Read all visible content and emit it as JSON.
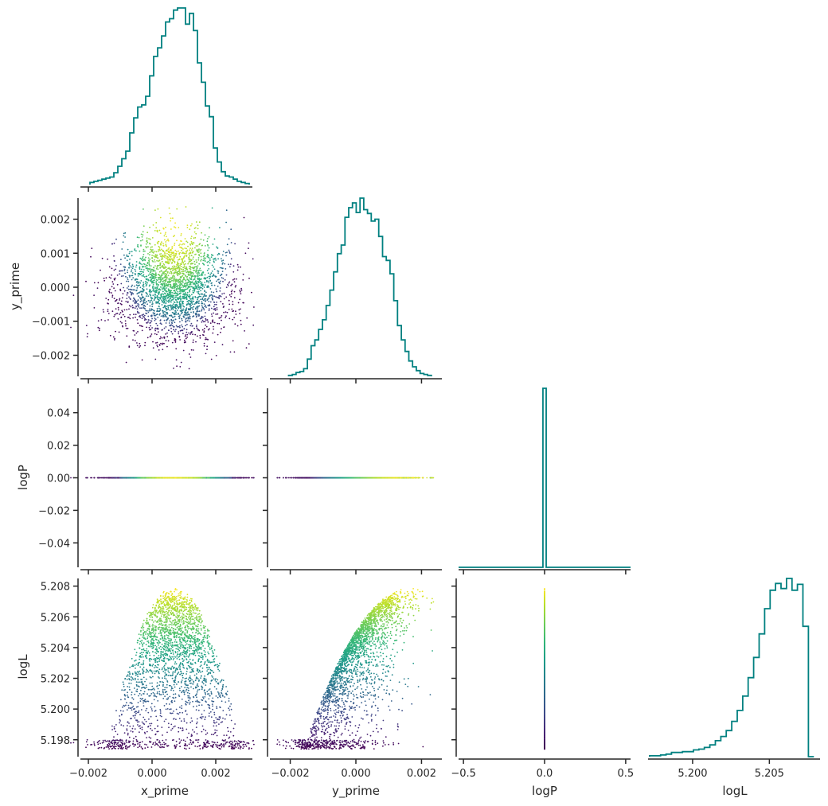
{
  "chart_data": {
    "type": "corner",
    "variables": [
      "x_prime",
      "y_prime",
      "logP",
      "logL"
    ],
    "axis_labels": {
      "x": [
        "x_prime",
        "y_prime",
        "logP",
        "logL"
      ],
      "y": [
        "",
        "y_prime",
        "logP",
        "logL"
      ]
    },
    "colors": {
      "histogram": "#008080",
      "axis": "#262626",
      "colormap": "viridis"
    },
    "ranges": {
      "x_prime": [
        -0.00225,
        0.00315
      ],
      "y_prime": [
        -0.00262,
        0.00262
      ],
      "logP": [
        -0.055,
        0.055
      ],
      "logL": [
        5.1969,
        5.2085
      ],
      "logP_hist_x": [
        -0.53,
        0.53
      ],
      "logL_hist_x": [
        5.1971,
        5.2083
      ]
    },
    "ticks": {
      "x_prime": {
        "values": [
          -0.002,
          0.0,
          0.002
        ],
        "labels": [
          "−0.002",
          "0.000",
          "0.002"
        ]
      },
      "y_prime_x": {
        "values": [
          -0.002,
          0.0,
          0.002
        ],
        "labels": [
          "−0.002",
          "0.000",
          "0.002"
        ]
      },
      "y_prime_y": {
        "values": [
          -0.002,
          -0.001,
          0.0,
          0.001,
          0.002
        ],
        "labels": [
          "−0.002",
          "−0.001",
          "0.000",
          "0.001",
          "0.002"
        ]
      },
      "logP_x": {
        "values": [
          -0.5,
          0.0,
          0.5
        ],
        "labels": [
          "−0.5",
          "0.0",
          "0.5"
        ]
      },
      "logP_y": {
        "values": [
          -0.04,
          -0.02,
          0.0,
          0.02,
          0.04
        ],
        "labels": [
          "−0.04",
          "−0.02",
          "0.00",
          "0.02",
          "0.04"
        ]
      },
      "logL_x": {
        "values": [
          5.2,
          5.205
        ],
        "labels": [
          "5.200",
          "5.205"
        ]
      },
      "logL_y": {
        "values": [
          5.198,
          5.2,
          5.202,
          5.204,
          5.206,
          5.208
        ],
        "labels": [
          "5.198",
          "5.200",
          "5.202",
          "5.204",
          "5.206",
          "5.208"
        ]
      }
    },
    "histograms": {
      "x_prime": {
        "bins": [
          -0.00195,
          0.00305
        ],
        "counts": [
          2,
          3,
          4,
          5,
          6,
          7,
          11,
          17,
          24,
          31,
          48,
          62,
          72,
          74,
          82,
          101,
          119,
          127,
          138,
          151,
          154,
          162,
          164,
          164,
          149,
          159,
          143,
          113,
          95,
          73,
          63,
          34,
          21,
          12,
          8,
          7,
          5,
          3,
          2,
          1
        ]
      },
      "y_prime": {
        "bins": [
          -0.00205,
          0.0023
        ],
        "counts": [
          1,
          2,
          4,
          5,
          8,
          18,
          32,
          38,
          49,
          59,
          74,
          90,
          109,
          128,
          137,
          166,
          176,
          181,
          171,
          186,
          174,
          170,
          162,
          164,
          146,
          125,
          121,
          107,
          79,
          53,
          38,
          26,
          16,
          10,
          6,
          3,
          2,
          1
        ]
      },
      "logP": {
        "bin": [
          -0.01,
          0.01
        ],
        "count": 1
      },
      "logL": {
        "bins": [
          5.1972,
          5.2079
        ],
        "counts": [
          1,
          1,
          2,
          3,
          5,
          5,
          6,
          6,
          8,
          9,
          11,
          14,
          19,
          24,
          31,
          42,
          55,
          72,
          94,
          118,
          146,
          176,
          198,
          206,
          200,
          212,
          198,
          205,
          155,
          0
        ]
      }
    },
    "scatter_summary": {
      "x_prime_vs_y_prime": {
        "x_center": 0.0007,
        "x_sd": 0.0009,
        "y_center": 0.0,
        "y_sd": 0.0008
      },
      "logP_value": 0.0,
      "logL_max": 5.2079,
      "logL_min_observed": 5.1974
    }
  }
}
